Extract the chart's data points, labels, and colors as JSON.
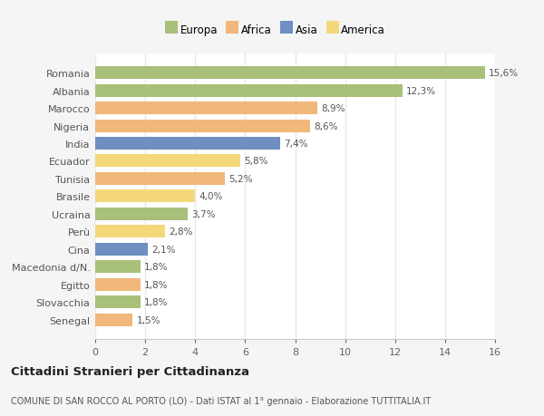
{
  "countries": [
    "Romania",
    "Albania",
    "Marocco",
    "Nigeria",
    "India",
    "Ecuador",
    "Tunisia",
    "Brasile",
    "Ucraina",
    "Perù",
    "Cina",
    "Macedonia d/N.",
    "Egitto",
    "Slovacchia",
    "Senegal"
  ],
  "values": [
    15.6,
    12.3,
    8.9,
    8.6,
    7.4,
    5.8,
    5.2,
    4.0,
    3.7,
    2.8,
    2.1,
    1.8,
    1.8,
    1.8,
    1.5
  ],
  "labels": [
    "15,6%",
    "12,3%",
    "8,9%",
    "8,6%",
    "7,4%",
    "5,8%",
    "5,2%",
    "4,0%",
    "3,7%",
    "2,8%",
    "2,1%",
    "1,8%",
    "1,8%",
    "1,8%",
    "1,5%"
  ],
  "colors": [
    "#a8c07a",
    "#a8c07a",
    "#f0b87a",
    "#f0b87a",
    "#6e8fc0",
    "#f5d87a",
    "#f0b87a",
    "#f5d87a",
    "#a8c07a",
    "#f5d87a",
    "#6e8fc0",
    "#a8c07a",
    "#f0b87a",
    "#a8c07a",
    "#f0b87a"
  ],
  "legend_labels": [
    "Europa",
    "Africa",
    "Asia",
    "America"
  ],
  "legend_colors": [
    "#a8c07a",
    "#f0b87a",
    "#6e8fc0",
    "#f5d87a"
  ],
  "xlim": [
    0,
    16
  ],
  "xticks": [
    0,
    2,
    4,
    6,
    8,
    10,
    12,
    14,
    16
  ],
  "title": "Cittadini Stranieri per Cittadinanza",
  "subtitle": "COMUNE DI SAN ROCCO AL PORTO (LO) - Dati ISTAT al 1° gennaio - Elaborazione TUTTITALIA.IT",
  "fig_background": "#f5f5f5",
  "plot_background": "#ffffff",
  "grid_color": "#e8e8e8"
}
